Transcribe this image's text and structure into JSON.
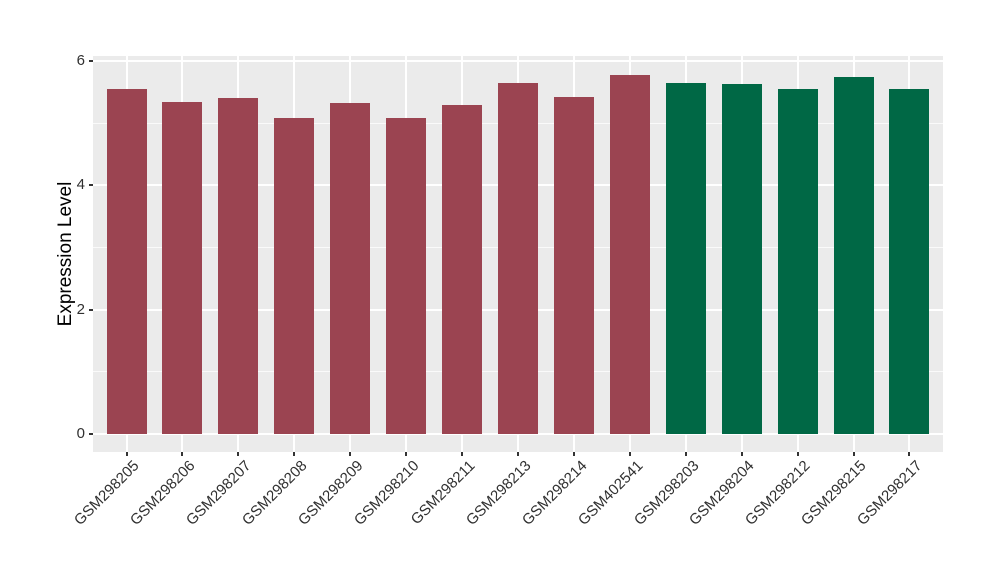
{
  "chart_data": {
    "type": "bar",
    "title": "",
    "xlabel": "",
    "ylabel": "Expression Level",
    "ylim": [
      0,
      6.08
    ],
    "yticks": [
      0,
      2,
      4,
      6
    ],
    "minor_yticks": [
      1,
      3,
      5
    ],
    "grid": true,
    "legend_position": "none",
    "categories": [
      "GSM298205",
      "GSM298206",
      "GSM298207",
      "GSM298208",
      "GSM298209",
      "GSM298210",
      "GSM298211",
      "GSM298213",
      "GSM298214",
      "GSM402541",
      "GSM298203",
      "GSM298204",
      "GSM298212",
      "GSM298215",
      "GSM298217"
    ],
    "values": [
      5.55,
      5.34,
      5.4,
      5.09,
      5.32,
      5.08,
      5.29,
      5.64,
      5.42,
      5.78,
      5.65,
      5.63,
      5.55,
      5.74,
      5.55
    ],
    "bar_colors": [
      "#9B4451",
      "#9B4451",
      "#9B4451",
      "#9B4451",
      "#9B4451",
      "#9B4451",
      "#9B4451",
      "#9B4451",
      "#9B4451",
      "#9B4451",
      "#006845",
      "#006845",
      "#006845",
      "#006845",
      "#006845"
    ]
  },
  "style": {
    "panel_background": "#EBEBEB",
    "grid_color": "#FFFFFF",
    "tick_mark_color": "#333333",
    "axis_text_color": "#303030",
    "axis_title_color": "#000000",
    "group1_color": "#9B4451",
    "group2_color": "#006845"
  }
}
